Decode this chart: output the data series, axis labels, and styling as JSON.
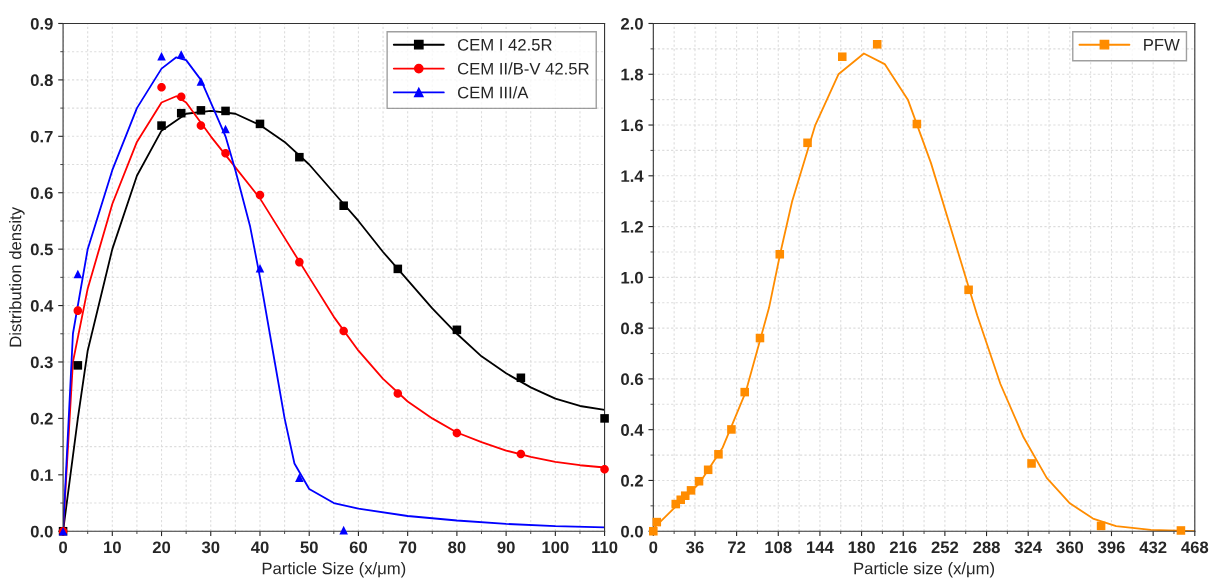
{
  "chart_data": [
    {
      "type": "scatter",
      "xlabel": "Particle Size (x/μm)",
      "ylabel": "Distribution density",
      "xlim": [
        0,
        110
      ],
      "xticks": [
        0,
        10,
        20,
        30,
        40,
        50,
        60,
        70,
        80,
        90,
        100,
        110
      ],
      "ylim": [
        0,
        0.9
      ],
      "yticks": [
        {
          "value": 0,
          "label": "0.0"
        },
        0.1,
        0.2,
        0.3,
        0.4,
        0.5,
        0.6,
        0.7,
        0.8,
        0.9
      ],
      "grid": true,
      "legend": "top right",
      "series": [
        {
          "name": "CEM I 42.5R",
          "marker": "square",
          "color": "#000000",
          "x": [
            0,
            3,
            20,
            24,
            28,
            33,
            40,
            48,
            57,
            68,
            80,
            93,
            110
          ],
          "values": [
            0,
            0.294,
            0.719,
            0.741,
            0.746,
            0.745,
            0.722,
            0.663,
            0.577,
            0.465,
            0.357,
            0.272,
            0.2
          ]
        },
        {
          "name": "CEM II/B-V 42.5R",
          "marker": "circle",
          "color": "#ff0000",
          "x": [
            0,
            3,
            20,
            24,
            28,
            33,
            40,
            48,
            57,
            68,
            80,
            93,
            110
          ],
          "values": [
            0,
            0.391,
            0.787,
            0.77,
            0.719,
            0.67,
            0.596,
            0.477,
            0.355,
            0.244,
            0.174,
            0.137,
            0.11
          ]
        },
        {
          "name": "CEM III/A",
          "marker": "triangle",
          "color": "#0000ff",
          "x": [
            0,
            3,
            20,
            24,
            28,
            33,
            40,
            48,
            57
          ],
          "values": [
            0,
            0.456,
            0.842,
            0.845,
            0.797,
            0.713,
            0.466,
            0.095,
            0.002
          ]
        },
        {
          "type": "line",
          "color": "#000000",
          "x": [
            0,
            3,
            5,
            10,
            15,
            20,
            25,
            30,
            35,
            40,
            45,
            50,
            55,
            60,
            65,
            70,
            75,
            80,
            85,
            90,
            95,
            100,
            105,
            110
          ],
          "values": [
            0,
            0.2,
            0.32,
            0.5,
            0.63,
            0.71,
            0.74,
            0.745,
            0.74,
            0.72,
            0.69,
            0.65,
            0.6,
            0.55,
            0.495,
            0.445,
            0.395,
            0.35,
            0.31,
            0.28,
            0.255,
            0.235,
            0.222,
            0.215
          ]
        },
        {
          "type": "line",
          "color": "#ff0000",
          "x": [
            0,
            2,
            5,
            10,
            15,
            20,
            23,
            25,
            30,
            35,
            40,
            45,
            50,
            55,
            60,
            65,
            70,
            75,
            80,
            85,
            90,
            95,
            100,
            105,
            110
          ],
          "values": [
            0,
            0.3,
            0.43,
            0.58,
            0.69,
            0.76,
            0.771,
            0.76,
            0.7,
            0.645,
            0.59,
            0.52,
            0.45,
            0.38,
            0.32,
            0.27,
            0.23,
            0.2,
            0.175,
            0.158,
            0.143,
            0.132,
            0.123,
            0.117,
            0.113
          ]
        },
        {
          "type": "line",
          "color": "#0000ff",
          "x": [
            0,
            2,
            5,
            10,
            15,
            20,
            23,
            25,
            28,
            30,
            33,
            35,
            38,
            40,
            43,
            45,
            47,
            50,
            55,
            60,
            70,
            80,
            90,
            100,
            110
          ],
          "values": [
            0,
            0.35,
            0.5,
            0.64,
            0.75,
            0.82,
            0.84,
            0.835,
            0.8,
            0.76,
            0.7,
            0.64,
            0.54,
            0.45,
            0.3,
            0.2,
            0.12,
            0.075,
            0.05,
            0.04,
            0.027,
            0.019,
            0.013,
            0.009,
            0.007
          ]
        }
      ]
    },
    {
      "type": "scatter",
      "xlabel": "Particle size (x/μm)",
      "xlim": [
        0,
        468
      ],
      "xticks": [
        0,
        36,
        72,
        108,
        144,
        180,
        216,
        252,
        288,
        324,
        360,
        396,
        432,
        468
      ],
      "ylim": [
        0,
        2.0
      ],
      "yticks": [
        {
          "value": 0,
          "label": "0.0"
        },
        0.2,
        0.4,
        0.6,
        0.8,
        {
          "value": 1.0,
          "label": "1.0"
        },
        1.2,
        1.4,
        1.6,
        1.8,
        {
          "value": 2.0,
          "label": "2.0"
        }
      ],
      "grid": true,
      "legend": "top right",
      "series": [
        {
          "name": "PFW",
          "marker": "square",
          "color": "#ff8c00",
          "x": [
            0,
            3,
            19.4,
            23.7,
            27.6,
            32.6,
            39.5,
            47.4,
            56.3,
            67.5,
            79,
            92.2,
            109.3,
            133.3,
            163.3,
            193.5,
            227.8,
            272.5,
            326.9,
            387,
            456
          ],
          "values": [
            0,
            0.036,
            0.107,
            0.124,
            0.14,
            0.161,
            0.197,
            0.242,
            0.303,
            0.401,
            0.548,
            0.761,
            1.091,
            1.53,
            1.869,
            1.918,
            1.604,
            0.951,
            0.267,
            0.021,
            0.003
          ]
        },
        {
          "type": "line",
          "color": "#ff8c00",
          "x": [
            0,
            20,
            40,
            60,
            80,
            100,
            110,
            120,
            140,
            160,
            182,
            200,
            220,
            240,
            260,
            280,
            300,
            320,
            340,
            360,
            380,
            400,
            430,
            468
          ],
          "values": [
            0.01,
            0.1,
            0.19,
            0.33,
            0.55,
            0.88,
            1.1,
            1.3,
            1.6,
            1.8,
            1.882,
            1.84,
            1.7,
            1.45,
            1.15,
            0.85,
            0.58,
            0.37,
            0.21,
            0.11,
            0.05,
            0.02,
            0.005,
            0
          ]
        }
      ]
    }
  ]
}
